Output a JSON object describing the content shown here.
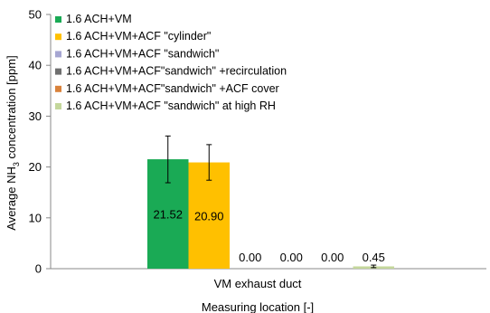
{
  "chart_data": {
    "type": "bar",
    "title": "",
    "xlabel": "Measuring location [-]",
    "ylabel_main": "Average NH",
    "ylabel_sub": "3",
    "ylabel_rest": " concentration [ppm]",
    "ylim": [
      0,
      50
    ],
    "yticks": [
      0,
      10,
      20,
      30,
      40,
      50
    ],
    "categories": [
      "VM exhaust duct"
    ],
    "grid": false,
    "legend_position": "top-left",
    "series": [
      {
        "name": "1.6 ACH+VM",
        "color": "#1aaa55",
        "values": [
          21.52
        ],
        "error_low": 16.9,
        "error_high": 26.1,
        "label": "21.52"
      },
      {
        "name": "1.6 ACH+VM+ACF \"cylinder\"",
        "color": "#ffc000",
        "values": [
          20.9
        ],
        "error_low": 17.4,
        "error_high": 24.4,
        "label": "20.90"
      },
      {
        "name": "1.6 ACH+VM+ACF \"sandwich\"",
        "color": "#a6a6d2",
        "values": [
          0.0
        ],
        "label": "0.00"
      },
      {
        "name": "1.6 ACH+VM+ACF\"sandwich\" +recirculation",
        "color": "#6f6f6f",
        "values": [
          0.0
        ],
        "label": "0.00"
      },
      {
        "name": "1.6 ACH+VM+ACF\"sandwich\" +ACF cover",
        "color": "#d9823b",
        "values": [
          0.0
        ],
        "label": "0.00"
      },
      {
        "name": "1.6 ACH+VM+ACF \"sandwich\" at high RH",
        "color": "#c4d79b",
        "values": [
          0.45
        ],
        "error_low": 0.2,
        "error_high": 0.7,
        "label": "0.45"
      }
    ]
  }
}
